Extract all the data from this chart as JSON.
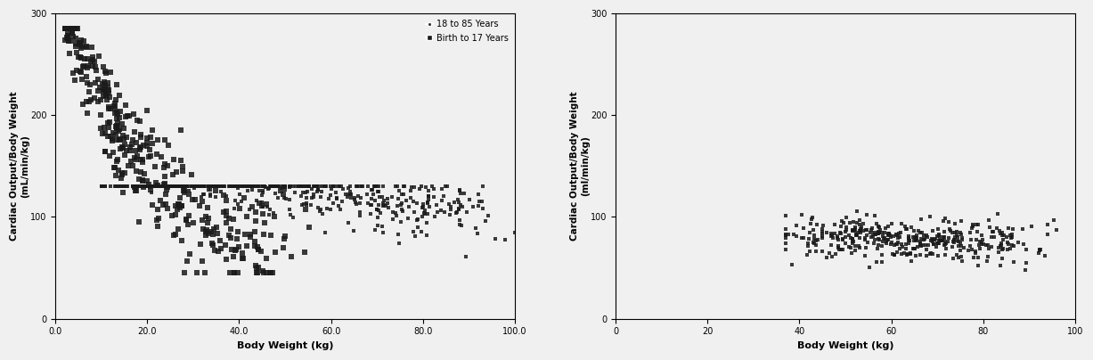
{
  "left_plot": {
    "xlabel": "Body Weight (kg)",
    "ylabel": "Cardiac Output/Body Weight\n(mL/min/kg)",
    "xlim": [
      0.0,
      100.0
    ],
    "ylim": [
      0,
      300
    ],
    "xticks": [
      0.0,
      20.0,
      40.0,
      60.0,
      80.0,
      100.0
    ],
    "xtick_labels": [
      "0.0",
      "20.0",
      "40.0",
      "60.0",
      "80.0",
      "100.0"
    ],
    "yticks": [
      0,
      100,
      200,
      300
    ],
    "legend_label_adult": "18 to 85 Years",
    "legend_label_child": "Birth to 17 Years"
  },
  "right_plot": {
    "xlabel": "Body Weight (kg)",
    "ylabel": "Cardiac Output/Body Weight\n(ml/min/kg)",
    "xlim": [
      0,
      100
    ],
    "ylim": [
      0,
      300
    ],
    "xticks": [
      0,
      20,
      40,
      60,
      80,
      100
    ],
    "yticks": [
      0,
      100,
      200,
      300
    ]
  },
  "marker_color": "#1a1a1a",
  "background_color": "#f0f0f0",
  "adult_marker_size": 2.5,
  "child_marker_size": 5.0,
  "sim_marker_size": 2.5
}
